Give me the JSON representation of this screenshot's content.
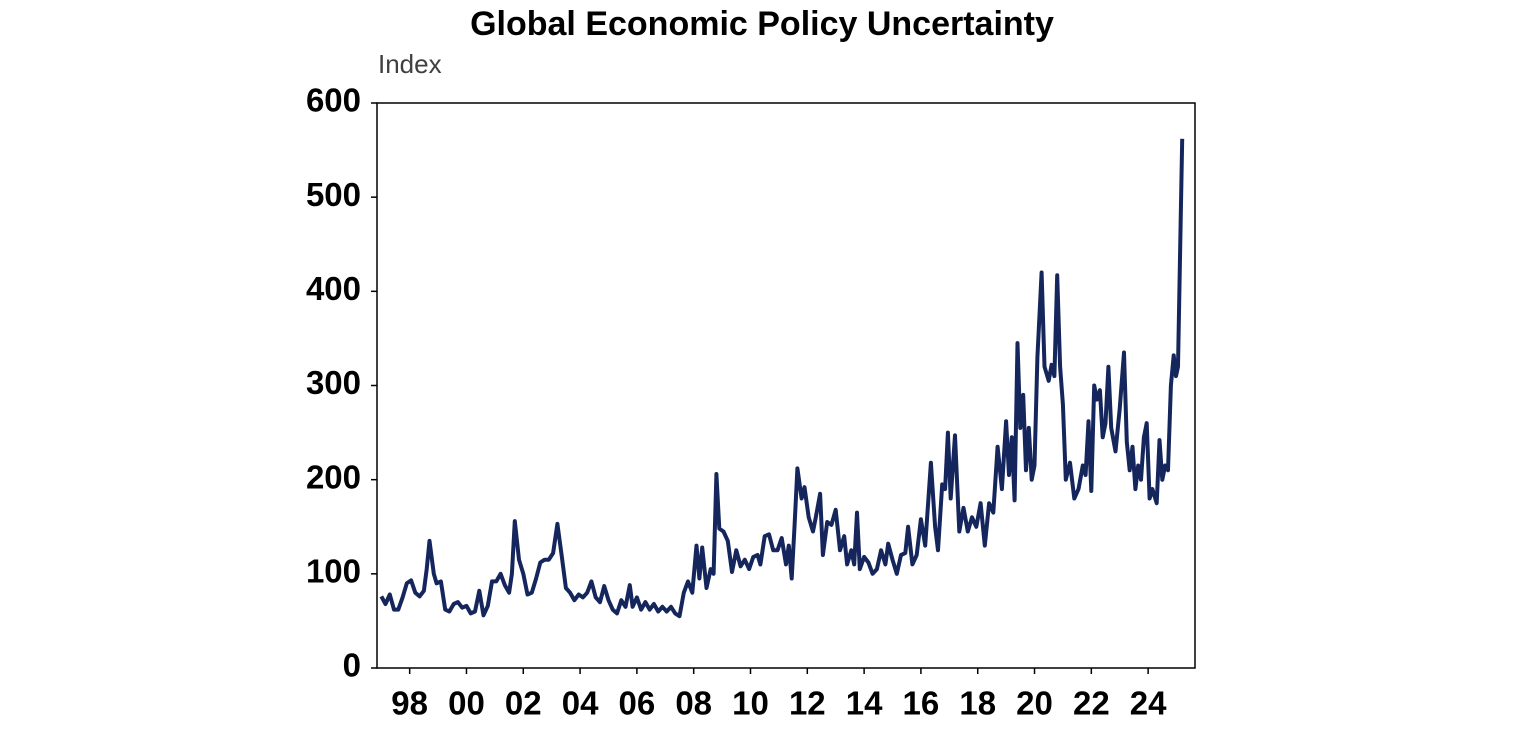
{
  "chart_data": {
    "type": "line",
    "title": "Global Economic Policy Uncertainty",
    "y_label": "Index",
    "x": [
      1997.0,
      1997.15,
      1997.3,
      1997.45,
      1997.6,
      1997.75,
      1997.9,
      1998.05,
      1998.2,
      1998.35,
      1998.5,
      1998.6,
      1998.7,
      1998.85,
      1998.95,
      1999.1,
      1999.25,
      1999.4,
      1999.55,
      1999.7,
      1999.85,
      2000.0,
      2000.15,
      2000.3,
      2000.45,
      2000.6,
      2000.75,
      2000.9,
      2001.05,
      2001.2,
      2001.35,
      2001.5,
      2001.6,
      2001.7,
      2001.85,
      2002.0,
      2002.15,
      2002.3,
      2002.45,
      2002.6,
      2002.75,
      2002.9,
      2003.05,
      2003.2,
      2003.35,
      2003.5,
      2003.65,
      2003.8,
      2003.95,
      2004.1,
      2004.25,
      2004.4,
      2004.55,
      2004.7,
      2004.85,
      2005.0,
      2005.15,
      2005.3,
      2005.45,
      2005.6,
      2005.75,
      2005.85,
      2006.0,
      2006.15,
      2006.3,
      2006.45,
      2006.6,
      2006.75,
      2006.9,
      2007.05,
      2007.2,
      2007.35,
      2007.5,
      2007.65,
      2007.8,
      2007.95,
      2008.1,
      2008.2,
      2008.3,
      2008.45,
      2008.6,
      2008.7,
      2008.8,
      2008.9,
      2009.05,
      2009.2,
      2009.35,
      2009.5,
      2009.65,
      2009.8,
      2009.95,
      2010.1,
      2010.25,
      2010.35,
      2010.5,
      2010.65,
      2010.8,
      2010.95,
      2011.1,
      2011.25,
      2011.35,
      2011.45,
      2011.55,
      2011.65,
      2011.8,
      2011.9,
      2012.05,
      2012.2,
      2012.3,
      2012.45,
      2012.55,
      2012.7,
      2012.85,
      2013.0,
      2013.15,
      2013.3,
      2013.4,
      2013.55,
      2013.65,
      2013.75,
      2013.85,
      2014.0,
      2014.15,
      2014.3,
      2014.45,
      2014.6,
      2014.75,
      2014.85,
      2015.0,
      2015.15,
      2015.3,
      2015.45,
      2015.55,
      2015.7,
      2015.85,
      2016.0,
      2016.15,
      2016.35,
      2016.5,
      2016.6,
      2016.75,
      2016.85,
      2016.95,
      2017.05,
      2017.2,
      2017.35,
      2017.5,
      2017.65,
      2017.8,
      2017.95,
      2018.1,
      2018.25,
      2018.4,
      2018.55,
      2018.7,
      2018.85,
      2019.0,
      2019.1,
      2019.2,
      2019.3,
      2019.4,
      2019.5,
      2019.6,
      2019.7,
      2019.8,
      2019.9,
      2020.0,
      2020.1,
      2020.25,
      2020.35,
      2020.5,
      2020.6,
      2020.7,
      2020.8,
      2020.9,
      2021.0,
      2021.1,
      2021.25,
      2021.4,
      2021.55,
      2021.7,
      2021.8,
      2021.9,
      2022.0,
      2022.1,
      2022.2,
      2022.3,
      2022.4,
      2022.5,
      2022.6,
      2022.7,
      2022.85,
      2023.0,
      2023.15,
      2023.25,
      2023.35,
      2023.45,
      2023.55,
      2023.65,
      2023.75,
      2023.85,
      2023.95,
      2024.05,
      2024.15,
      2024.3,
      2024.4,
      2024.5,
      2024.6,
      2024.7,
      2024.8,
      2024.9,
      2024.98,
      2025.05,
      2025.12,
      2025.2
    ],
    "series": [
      {
        "name": "Global Economic Policy Uncertainty",
        "color": "#15265c",
        "values": [
          76,
          68,
          78,
          62,
          62,
          75,
          90,
          93,
          80,
          76,
          82,
          105,
          135,
          100,
          90,
          92,
          62,
          60,
          68,
          70,
          64,
          66,
          58,
          60,
          82,
          56,
          66,
          92,
          92,
          100,
          88,
          80,
          100,
          156,
          115,
          100,
          78,
          80,
          95,
          112,
          115,
          115,
          122,
          153,
          120,
          85,
          80,
          72,
          78,
          75,
          80,
          92,
          75,
          70,
          87,
          72,
          62,
          58,
          72,
          65,
          88,
          65,
          75,
          62,
          70,
          62,
          68,
          60,
          65,
          60,
          65,
          58,
          55,
          80,
          92,
          80,
          130,
          95,
          128,
          85,
          105,
          100,
          206,
          148,
          145,
          135,
          102,
          125,
          108,
          115,
          105,
          118,
          120,
          110,
          140,
          142,
          125,
          125,
          138,
          110,
          130,
          95,
          150,
          212,
          180,
          192,
          160,
          145,
          160,
          185,
          120,
          155,
          152,
          168,
          125,
          140,
          110,
          125,
          110,
          165,
          105,
          118,
          112,
          100,
          105,
          125,
          110,
          132,
          115,
          100,
          120,
          122,
          150,
          110,
          120,
          158,
          130,
          218,
          150,
          125,
          195,
          190,
          250,
          180,
          247,
          145,
          170,
          145,
          160,
          150,
          175,
          130,
          175,
          165,
          235,
          190,
          262,
          205,
          245,
          178,
          345,
          255,
          290,
          210,
          255,
          200,
          215,
          330,
          420,
          320,
          305,
          322,
          310,
          417,
          320,
          280,
          200,
          218,
          180,
          190,
          215,
          205,
          262,
          188,
          300,
          285,
          295,
          245,
          260,
          320,
          255,
          230,
          275,
          335,
          240,
          210,
          235,
          190,
          215,
          200,
          245,
          260,
          180,
          190,
          175,
          242,
          200,
          215,
          210,
          300,
          332,
          310,
          320,
          430,
          562
        ]
      }
    ],
    "xlim": [
      1996.85,
      2025.65
    ],
    "xticks": [
      {
        "value": 1998,
        "label": "98"
      },
      {
        "value": 2000,
        "label": "00"
      },
      {
        "value": 2002,
        "label": "02"
      },
      {
        "value": 2004,
        "label": "04"
      },
      {
        "value": 2006,
        "label": "06"
      },
      {
        "value": 2008,
        "label": "08"
      },
      {
        "value": 2010,
        "label": "10"
      },
      {
        "value": 2012,
        "label": "12"
      },
      {
        "value": 2014,
        "label": "14"
      },
      {
        "value": 2016,
        "label": "16"
      },
      {
        "value": 2018,
        "label": "18"
      },
      {
        "value": 2020,
        "label": "20"
      },
      {
        "value": 2022,
        "label": "22"
      },
      {
        "value": 2024,
        "label": "24"
      }
    ],
    "ylim": [
      0,
      600
    ],
    "yticks": [
      0,
      100,
      200,
      300,
      400,
      500,
      600
    ],
    "grid": false
  }
}
